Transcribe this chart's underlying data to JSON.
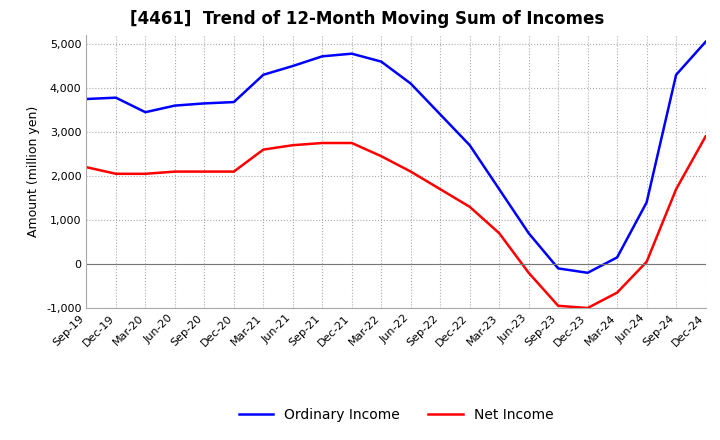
{
  "title": "[4461]  Trend of 12-Month Moving Sum of Incomes",
  "ylabel": "Amount (million yen)",
  "ylim": [
    -1000,
    5200
  ],
  "yticks": [
    -1000,
    0,
    1000,
    2000,
    3000,
    4000,
    5000
  ],
  "x_labels": [
    "Sep-19",
    "Dec-19",
    "Mar-20",
    "Jun-20",
    "Sep-20",
    "Dec-20",
    "Mar-21",
    "Jun-21",
    "Sep-21",
    "Dec-21",
    "Mar-22",
    "Jun-22",
    "Sep-22",
    "Dec-22",
    "Mar-23",
    "Jun-23",
    "Sep-23",
    "Dec-23",
    "Mar-24",
    "Jun-24",
    "Sep-24",
    "Dec-24"
  ],
  "ordinary_income": [
    3750,
    3780,
    3450,
    3600,
    3650,
    3680,
    4300,
    4500,
    4720,
    4780,
    4600,
    4100,
    3400,
    2700,
    1700,
    700,
    -100,
    -200,
    150,
    1400,
    4300,
    5050
  ],
  "net_income": [
    2200,
    2050,
    2050,
    2100,
    2100,
    2100,
    2600,
    2700,
    2750,
    2750,
    2450,
    2100,
    1700,
    1300,
    700,
    -200,
    -950,
    -1000,
    -650,
    50,
    1700,
    2900
  ],
  "ordinary_color": "#0000FF",
  "net_color": "#FF0000",
  "grid_color": "#AAAAAA",
  "zero_line_color": "#777777",
  "background_color": "#FFFFFF",
  "title_fontsize": 12,
  "axis_fontsize": 9,
  "tick_fontsize": 8,
  "legend_fontsize": 10
}
